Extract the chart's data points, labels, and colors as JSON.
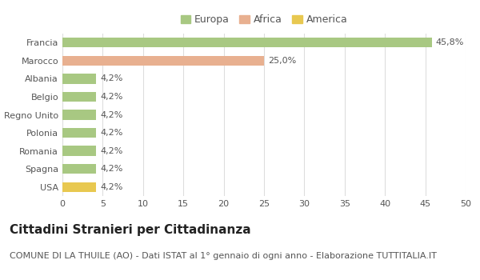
{
  "categories": [
    "Francia",
    "Marocco",
    "Albania",
    "Belgio",
    "Regno Unito",
    "Polonia",
    "Romania",
    "Spagna",
    "USA"
  ],
  "values": [
    45.8,
    25.0,
    4.2,
    4.2,
    4.2,
    4.2,
    4.2,
    4.2,
    4.2
  ],
  "labels": [
    "45,8%",
    "25,0%",
    "4,2%",
    "4,2%",
    "4,2%",
    "4,2%",
    "4,2%",
    "4,2%",
    "4,2%"
  ],
  "colors": [
    "#a8c882",
    "#e8b090",
    "#a8c882",
    "#a8c882",
    "#a8c882",
    "#a8c882",
    "#a8c882",
    "#a8c882",
    "#e8c850"
  ],
  "legend_labels": [
    "Europa",
    "Africa",
    "America"
  ],
  "legend_colors": [
    "#a8c882",
    "#e8b090",
    "#e8c850"
  ],
  "title": "Cittadini Stranieri per Cittadinanza",
  "subtitle": "COMUNE DI LA THUILE (AO) - Dati ISTAT al 1° gennaio di ogni anno - Elaborazione TUTTITALIA.IT",
  "xlim": [
    0,
    50
  ],
  "xticks": [
    0,
    5,
    10,
    15,
    20,
    25,
    30,
    35,
    40,
    45,
    50
  ],
  "background_color": "#ffffff",
  "grid_color": "#dddddd",
  "bar_height": 0.55,
  "title_fontsize": 11,
  "subtitle_fontsize": 8,
  "tick_fontsize": 8,
  "label_fontsize": 8,
  "legend_fontsize": 9
}
